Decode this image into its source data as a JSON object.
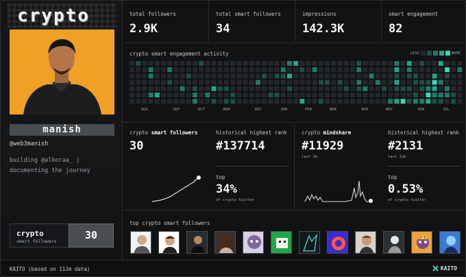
{
  "profile": {
    "brand": "crypto",
    "name": "manish",
    "handle": "@web3manish",
    "bio_line1": "building @alkoraa_ |",
    "bio_line2": "documenting the journey",
    "smart_box_title": "crypto",
    "smart_box_sub": "smart followers",
    "smart_box_value": "30"
  },
  "stats": [
    {
      "label": "total followers",
      "value": "2.9K"
    },
    {
      "label": "total smart followers",
      "value": "34"
    },
    {
      "label": "impressions",
      "value": "142.3K"
    },
    {
      "label": "smart engagement",
      "value": "82"
    }
  ],
  "activity": {
    "title": "crypto smart engagement activity",
    "legend_less": "LESS",
    "legend_more": "MORE",
    "months": [
      "AUG",
      "SEP",
      "OCT",
      "NOV",
      "DEC",
      "JAN",
      "FEB",
      "MAR",
      "APR",
      "MAY",
      "JUN",
      "JUL"
    ],
    "colors": [
      "#24272a",
      "#1d4f45",
      "#1f7a68",
      "#28a48a",
      "#3fd6b4"
    ]
  },
  "smart_followers": {
    "label_prefix": "crypto ",
    "label_bold": "smart followers",
    "value": "30",
    "rank_label": "historical highest rank",
    "rank_value": "#137714",
    "top_label": "top",
    "top_value": "34%",
    "top_sub": "of crypto twitter"
  },
  "mindshare": {
    "label_prefix": "crypto ",
    "label_bold": "mindshare",
    "value": "#11929",
    "value_sub": "last 3m",
    "rank_label": "historical highest rank",
    "rank_value": "#2131",
    "rank_sub": "last 12m",
    "top_label": "top",
    "top_value": "0.53%",
    "top_sub": "of crypto twitter"
  },
  "top_followers": {
    "title": "top crypto smart followers",
    "avatars": [
      "bg-white",
      "bg-white",
      "bg-dark",
      "bg-dark",
      "bg-purple",
      "bg-green",
      "bg-teal",
      "bg-red",
      "bg-brown",
      "bg-grey",
      "bg-orange",
      "bg-blue"
    ]
  },
  "footer": {
    "left": "KAITO (based on 112m data)",
    "logo": "KAITO"
  }
}
